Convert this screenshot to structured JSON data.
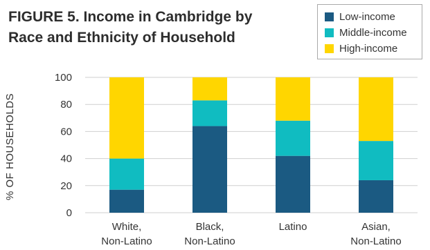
{
  "chart_data": {
    "type": "bar",
    "stacked": true,
    "title": "FIGURE 5. Income in Cambridge by Race and Ethnicity of Household",
    "ylabel": "% OF HOUSEHOLDS",
    "xlabel": "",
    "ylim": [
      0,
      100
    ],
    "yticks": [
      0,
      20,
      40,
      60,
      80,
      100
    ],
    "grid": true,
    "legend_position": "top-right",
    "categories": [
      [
        "White,",
        "Non-Latino"
      ],
      [
        "Black,",
        "Non-Latino"
      ],
      [
        "Latino"
      ],
      [
        "Asian,",
        "Non-Latino"
      ]
    ],
    "series": [
      {
        "name": "Low-income",
        "color": "#1b5a82",
        "values": [
          17,
          64,
          42,
          24
        ]
      },
      {
        "name": "Middle-income",
        "color": "#10bcc1",
        "values": [
          23,
          19,
          26,
          29
        ]
      },
      {
        "name": "High-income",
        "color": "#ffd600",
        "values": [
          60,
          17,
          32,
          47
        ]
      }
    ],
    "gridline_color": "#cfcfcf"
  }
}
